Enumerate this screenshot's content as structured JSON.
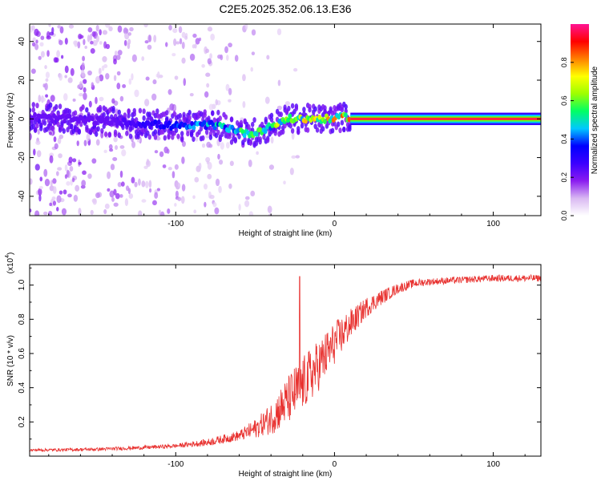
{
  "title": "C2E5.2025.352.06.13.E36",
  "chart_data": [
    {
      "type": "heatmap",
      "name": "spectrogram",
      "xlabel": "Height of straight line (km)",
      "ylabel": "Frequency (Hz)",
      "xlim": [
        -192,
        130
      ],
      "ylim": [
        -50,
        49
      ],
      "xticks": [
        -100,
        0,
        100
      ],
      "yticks": [
        -40,
        -20,
        0,
        20,
        40
      ],
      "xtick_labels": [
        "-100",
        "0",
        "100"
      ],
      "ytick_labels": [
        "-40",
        "-20",
        "0",
        "20",
        "40"
      ],
      "ridge": {
        "x": [
          -190,
          -170,
          -150,
          -130,
          -110,
          -95,
          -80,
          -70,
          -60,
          -55,
          -50,
          -40,
          -30,
          -20,
          -10,
          0,
          5,
          10
        ],
        "y": [
          1,
          0,
          -1,
          -2,
          -3,
          -4,
          -3,
          -4,
          -6,
          -8,
          -7,
          -4,
          0,
          0,
          0,
          0,
          1,
          1
        ]
      },
      "constant_line": {
        "x_start": 10,
        "x_end": 130,
        "y": 0
      },
      "colorbar": {
        "label": "Normalized spectral amplitude",
        "range": [
          0,
          1
        ],
        "ticks": [
          0.0,
          0.2,
          0.4,
          0.6,
          0.8
        ],
        "tick_labels": [
          "0.0",
          "0.2",
          "0.4",
          "0.6",
          "0.8"
        ],
        "colors": [
          "#ffffff",
          "#d9b8f2",
          "#8a1cf0",
          "#3b00ff",
          "#0000ff",
          "#00c8ff",
          "#00ff64",
          "#9dff00",
          "#ffff00",
          "#ff8000",
          "#ff0000",
          "#ff1493"
        ]
      }
    },
    {
      "type": "line",
      "name": "snr",
      "xlabel": "Height of straight line (km)",
      "ylabel": "SNR (10 * v/v)",
      "scale_label_base": "(x10",
      "scale_label_exp": "4",
      "scale_label_close": ")",
      "xlim": [
        -192,
        130
      ],
      "ylim": [
        0,
        1.12
      ],
      "xticks": [
        -100,
        0,
        100
      ],
      "yticks": [
        0.2,
        0.4,
        0.6,
        0.8,
        1.0
      ],
      "xtick_labels": [
        "-100",
        "0",
        "100"
      ],
      "ytick_labels": [
        "0.2",
        "0.4",
        "0.6",
        "0.8",
        "1.0"
      ],
      "color": "#e8312f",
      "trend": {
        "x": [
          -192,
          -150,
          -120,
          -100,
          -80,
          -60,
          -50,
          -40,
          -30,
          -20,
          -10,
          0,
          10,
          20,
          30,
          40,
          50,
          60,
          80,
          100,
          130
        ],
        "y": [
          0.035,
          0.04,
          0.05,
          0.06,
          0.08,
          0.12,
          0.16,
          0.22,
          0.32,
          0.42,
          0.53,
          0.66,
          0.77,
          0.87,
          0.93,
          0.98,
          1.01,
          1.02,
          1.03,
          1.04,
          1.04
        ]
      },
      "noise_envelope": {
        "x": [
          -192,
          -100,
          -60,
          -45,
          -35,
          -25,
          -15,
          -5,
          5,
          15,
          25,
          40,
          60,
          130
        ],
        "y": [
          0.008,
          0.012,
          0.03,
          0.07,
          0.12,
          0.16,
          0.16,
          0.14,
          0.11,
          0.07,
          0.05,
          0.03,
          0.02,
          0.02
        ]
      },
      "spike": {
        "x": -22,
        "y": 1.05
      }
    }
  ]
}
